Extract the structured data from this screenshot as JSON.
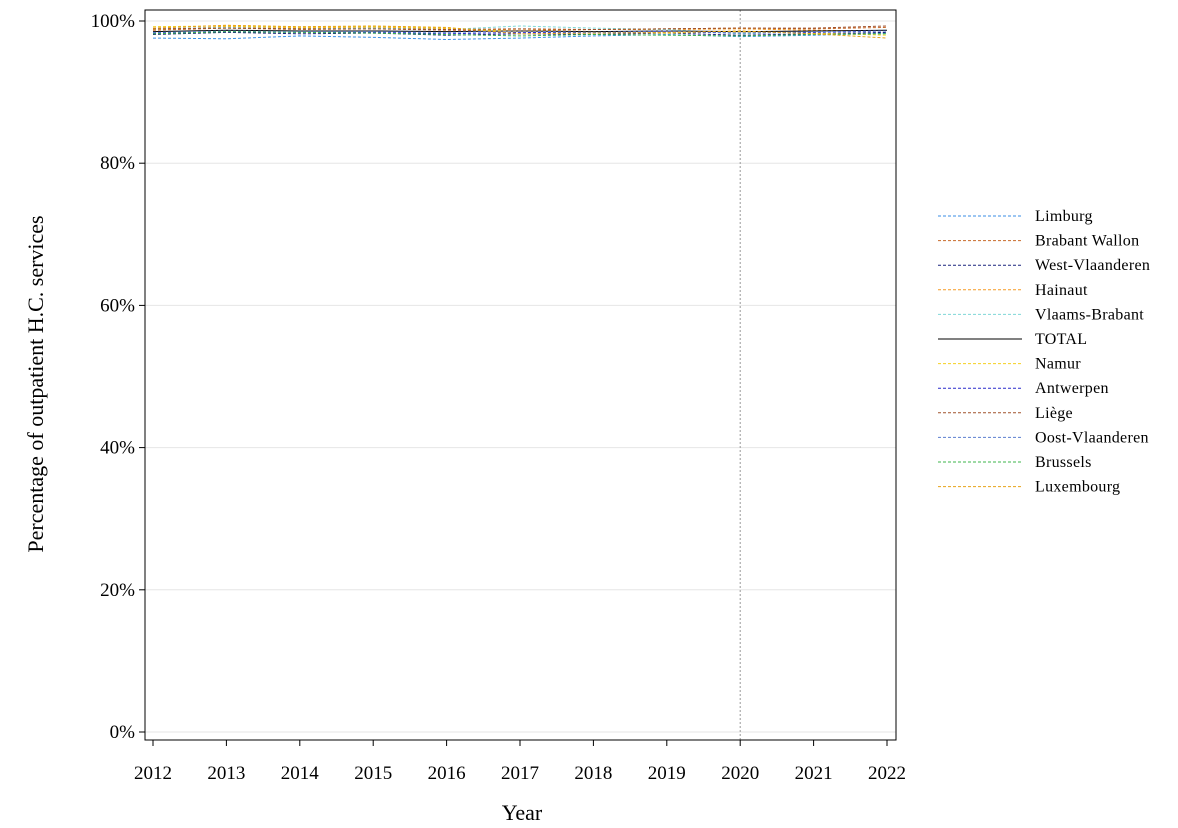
{
  "chart_data": {
    "type": "line",
    "xlabel": "Year",
    "ylabel": "Percentage of outpatient H.C. services",
    "x": [
      2012,
      2013,
      2014,
      2015,
      2016,
      2017,
      2018,
      2019,
      2020,
      2021,
      2022
    ],
    "xlim": [
      2012,
      2022
    ],
    "ylim": [
      0,
      100
    ],
    "y_ticks": [
      "0%",
      "20%",
      "40%",
      "60%",
      "80%",
      "100%"
    ],
    "y_tick_values": [
      0,
      20,
      40,
      60,
      80,
      100
    ],
    "x_ticks": [
      "2012",
      "2013",
      "2014",
      "2015",
      "2016",
      "2017",
      "2018",
      "2019",
      "2020",
      "2021",
      "2022"
    ],
    "grid": "horizontal",
    "reference_line_x": 2020,
    "legend_position": "right",
    "series": [
      {
        "name": "Limburg",
        "color": "#3a8ee6",
        "dash": "dashed",
        "values": [
          97.6,
          97.5,
          97.9,
          97.7,
          97.4,
          97.6,
          97.9,
          98.1,
          97.8,
          98.0,
          98.3
        ]
      },
      {
        "name": "Brabant Wallon",
        "color": "#c86a2a",
        "dash": "dashed",
        "values": [
          98.7,
          99.0,
          98.8,
          98.9,
          98.7,
          98.6,
          98.8,
          98.9,
          99.0,
          98.9,
          99.1
        ]
      },
      {
        "name": "West-Vlaanderen",
        "color": "#1a237e",
        "dash": "dashed",
        "values": [
          98.1,
          98.4,
          98.2,
          98.3,
          98.0,
          98.2,
          98.1,
          98.3,
          98.0,
          98.2,
          98.4
        ]
      },
      {
        "name": "Hainaut",
        "color": "#f59a23",
        "dash": "dashed",
        "values": [
          98.8,
          99.2,
          99.0,
          99.1,
          98.9,
          98.7,
          98.8,
          98.8,
          98.9,
          98.7,
          98.6
        ]
      },
      {
        "name": "Vlaams-Brabant",
        "color": "#7fd8d8",
        "dash": "dashed",
        "values": [
          98.9,
          99.1,
          98.9,
          99.0,
          98.8,
          99.3,
          99.0,
          98.8,
          98.2,
          98.5,
          98.7
        ]
      },
      {
        "name": "TOTAL",
        "color": "#000000",
        "dash": "solid",
        "values": [
          98.5,
          98.7,
          98.6,
          98.6,
          98.5,
          98.6,
          98.5,
          98.6,
          98.5,
          98.6,
          98.7
        ]
      },
      {
        "name": "Namur",
        "color": "#f5d020",
        "dash": "dashed",
        "values": [
          99.2,
          99.3,
          99.1,
          99.2,
          99.0,
          98.5,
          98.4,
          98.3,
          98.5,
          98.3,
          98.0
        ]
      },
      {
        "name": "Antwerpen",
        "color": "#2a2acc",
        "dash": "dashed",
        "values": [
          98.3,
          98.5,
          98.4,
          98.4,
          98.2,
          98.4,
          98.3,
          98.5,
          98.3,
          98.4,
          98.6
        ]
      },
      {
        "name": "Liège",
        "color": "#a0522d",
        "dash": "dashed",
        "values": [
          98.9,
          99.0,
          98.9,
          98.9,
          98.8,
          98.9,
          98.8,
          98.9,
          99.0,
          99.0,
          99.3
        ]
      },
      {
        "name": "Oost-Vlaanderen",
        "color": "#5b7fcf",
        "dash": "dashed",
        "values": [
          98.4,
          98.6,
          98.5,
          98.5,
          98.4,
          98.6,
          98.4,
          98.6,
          98.3,
          98.5,
          98.6
        ]
      },
      {
        "name": "Brussels",
        "color": "#3cb44b",
        "dash": "dashed",
        "values": [
          98.2,
          98.5,
          98.4,
          98.3,
          98.1,
          97.9,
          98.1,
          98.0,
          97.9,
          98.1,
          98.2
        ]
      },
      {
        "name": "Luxembourg",
        "color": "#e8a317",
        "dash": "dashed",
        "values": [
          99.0,
          99.4,
          99.2,
          99.3,
          99.1,
          98.2,
          98.3,
          98.4,
          98.6,
          98.2,
          97.6
        ]
      }
    ]
  }
}
